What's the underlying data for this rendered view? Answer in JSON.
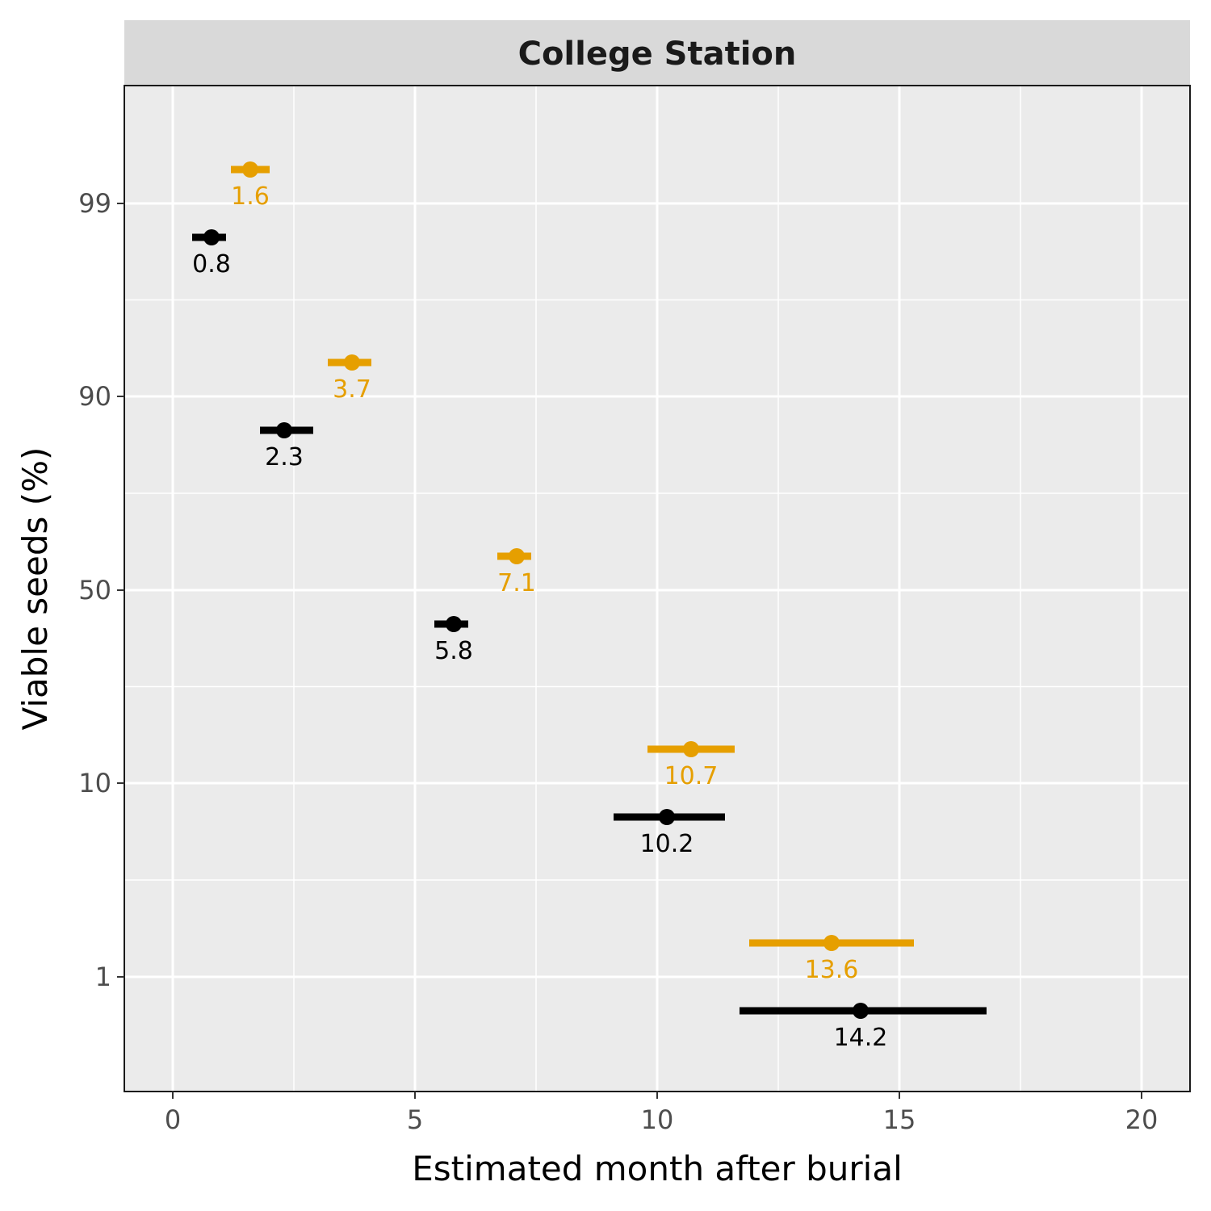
{
  "chart_data": {
    "type": "scatter",
    "facet_title": "College Station",
    "xlabel": "Estimated month after burial",
    "ylabel": "Viable seeds (%)",
    "xlim": [
      -1,
      21
    ],
    "x_ticks": [
      0,
      5,
      10,
      15,
      20
    ],
    "y_ticks": [
      99,
      90,
      50,
      10,
      1
    ],
    "y_tick_labels": [
      "99",
      "90",
      "50",
      "10",
      "1"
    ],
    "grid": true,
    "legend": "none",
    "series": [
      {
        "color": "#E69F00",
        "points": [
          {
            "y_level": 99,
            "x": 1.6,
            "xmin": 1.2,
            "xmax": 2.0,
            "label": "1.6"
          },
          {
            "y_level": 90,
            "x": 3.7,
            "xmin": 3.2,
            "xmax": 4.1,
            "label": "3.7"
          },
          {
            "y_level": 50,
            "x": 7.1,
            "xmin": 6.7,
            "xmax": 7.4,
            "label": "7.1"
          },
          {
            "y_level": 10,
            "x": 10.7,
            "xmin": 9.8,
            "xmax": 11.6,
            "label": "10.7"
          },
          {
            "y_level": 1,
            "x": 13.6,
            "xmin": 11.9,
            "xmax": 15.3,
            "label": "13.6"
          }
        ]
      },
      {
        "color": "#000000",
        "points": [
          {
            "y_level": 99,
            "x": 0.8,
            "xmin": 0.4,
            "xmax": 1.1,
            "label": "0.8"
          },
          {
            "y_level": 90,
            "x": 2.3,
            "xmin": 1.8,
            "xmax": 2.9,
            "label": "2.3"
          },
          {
            "y_level": 50,
            "x": 5.8,
            "xmin": 5.4,
            "xmax": 6.1,
            "label": "5.8"
          },
          {
            "y_level": 10,
            "x": 10.2,
            "xmin": 9.1,
            "xmax": 11.4,
            "label": "10.2"
          },
          {
            "y_level": 1,
            "x": 14.2,
            "xmin": 11.7,
            "xmax": 16.8,
            "label": "14.2"
          }
        ]
      }
    ]
  }
}
